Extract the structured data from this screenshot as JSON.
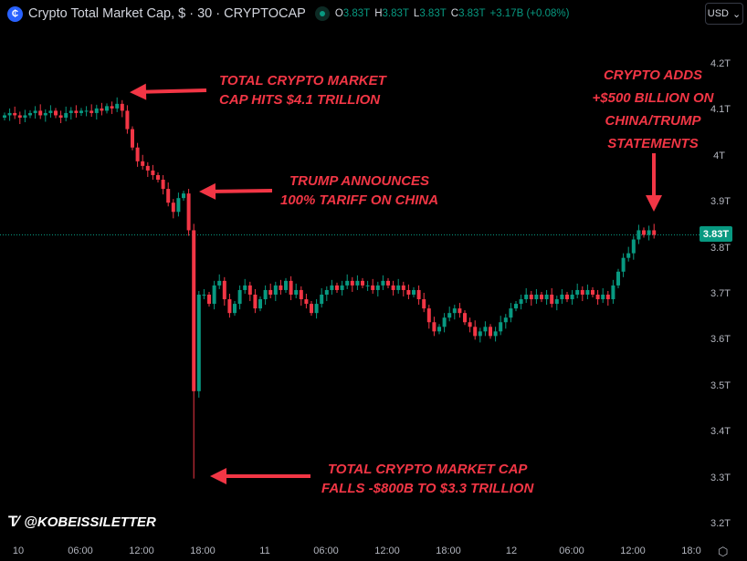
{
  "header": {
    "title": "Crypto Total Market Cap, $ · 30 · CRYPTOCAP",
    "ohlc": [
      {
        "k": "O",
        "v": "3.83T"
      },
      {
        "k": "H",
        "v": "3.83T"
      },
      {
        "k": "L",
        "v": "3.83T"
      },
      {
        "k": "C",
        "v": "3.83T"
      }
    ],
    "change": "+3.17B (+0.08%)",
    "currency": "USD"
  },
  "annotations": {
    "a1": [
      "TOTAL CRYPTO MARKET",
      "CAP HITS $4.1 TRILLION"
    ],
    "a2": [
      "TRUMP ANNOUNCES",
      "100% TARIFF ON CHINA"
    ],
    "a3": [
      "TOTAL CRYPTO MARKET CAP",
      "FALLS -$800B TO $3.3 TRILLION"
    ],
    "a4": [
      "CRYPTO ADDS",
      "+$500 BILLION ON",
      "CHINA/TRUMP",
      "STATEMENTS"
    ]
  },
  "watermark": "@KOBEISSILETTER",
  "last_price": "3.83T",
  "colors": {
    "up": "#089981",
    "down": "#f23645",
    "annotation": "#f23645",
    "background": "#000000"
  },
  "chart_data": {
    "type": "candlestick",
    "interval": "30",
    "y_ticks": [
      "4.2T",
      "4.1T",
      "4T",
      "3.9T",
      "3.8T",
      "3.7T",
      "3.6T",
      "3.5T",
      "3.4T",
      "3.3T",
      "3.2T"
    ],
    "y_tick_values": [
      4.2,
      4.1,
      4.0,
      3.9,
      3.8,
      3.7,
      3.6,
      3.5,
      3.4,
      3.3,
      3.2
    ],
    "ylim": [
      3.2,
      4.2
    ],
    "x_ticks": [
      "10",
      "06:00",
      "12:00",
      "18:00",
      "11",
      "06:00",
      "12:00",
      "18:00",
      "12",
      "06:00",
      "12:00",
      "18:0"
    ],
    "first_open": 4.085,
    "closes": [
      4.09,
      4.095,
      4.09,
      4.085,
      4.09,
      4.095,
      4.1,
      4.09,
      4.095,
      4.1,
      4.09,
      4.085,
      4.095,
      4.1,
      4.095,
      4.1,
      4.1,
      4.095,
      4.105,
      4.1,
      4.11,
      4.105,
      4.115,
      4.1,
      4.06,
      4.02,
      3.99,
      3.98,
      3.97,
      3.96,
      3.95,
      3.93,
      3.9,
      3.88,
      3.91,
      3.92,
      3.84,
      3.49,
      3.7,
      3.7,
      3.68,
      3.72,
      3.73,
      3.69,
      3.66,
      3.68,
      3.71,
      3.72,
      3.7,
      3.67,
      3.69,
      3.71,
      3.7,
      3.72,
      3.71,
      3.73,
      3.7,
      3.71,
      3.69,
      3.68,
      3.66,
      3.68,
      3.7,
      3.71,
      3.72,
      3.71,
      3.72,
      3.73,
      3.72,
      3.73,
      3.72,
      3.72,
      3.71,
      3.72,
      3.73,
      3.72,
      3.71,
      3.72,
      3.71,
      3.7,
      3.71,
      3.69,
      3.67,
      3.64,
      3.62,
      3.63,
      3.65,
      3.66,
      3.67,
      3.66,
      3.64,
      3.63,
      3.61,
      3.62,
      3.63,
      3.61,
      3.62,
      3.64,
      3.65,
      3.67,
      3.68,
      3.69,
      3.7,
      3.69,
      3.7,
      3.69,
      3.7,
      3.68,
      3.69,
      3.7,
      3.69,
      3.7,
      3.71,
      3.7,
      3.71,
      3.7,
      3.69,
      3.7,
      3.69,
      3.72,
      3.75,
      3.78,
      3.79,
      3.82,
      3.84,
      3.83,
      3.84,
      3.83
    ],
    "extreme_low": {
      "index": 37,
      "low": 3.3
    }
  }
}
